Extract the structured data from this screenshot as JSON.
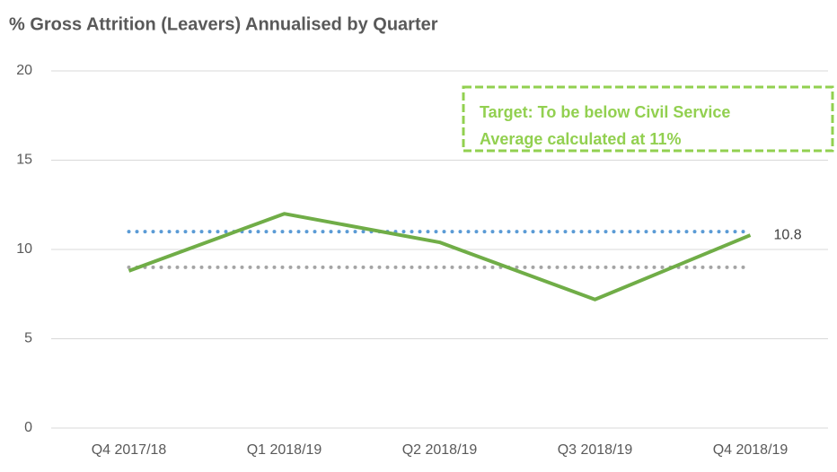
{
  "chart_data": {
    "type": "line",
    "title": "% Gross Attrition (Leavers) Annualised by Quarter",
    "categories": [
      "Q4 2017/18",
      "Q1 2018/19",
      "Q2 2018/19",
      "Q3 2018/19",
      "Q4 2018/19"
    ],
    "series": [
      {
        "color": "#70ad47",
        "style": "solid",
        "values": [
          8.8,
          12.0,
          10.4,
          7.2,
          10.8
        ],
        "value_labels": [
          null,
          null,
          null,
          null,
          "10.8"
        ]
      },
      {
        "color": "#5b9bd5",
        "style": "dotted",
        "values": [
          11,
          11,
          11,
          11,
          11
        ]
      },
      {
        "color": "#a5a5a5",
        "style": "dotted",
        "values": [
          9,
          9,
          9,
          9,
          9
        ]
      }
    ],
    "ylim": [
      0,
      20
    ],
    "yticks": [
      0,
      5,
      10,
      15,
      20
    ],
    "grid": true,
    "annotation": {
      "lines": [
        "Target: To be below Civil Service",
        "Average calculated at 11%"
      ],
      "color": "#92d050"
    }
  }
}
